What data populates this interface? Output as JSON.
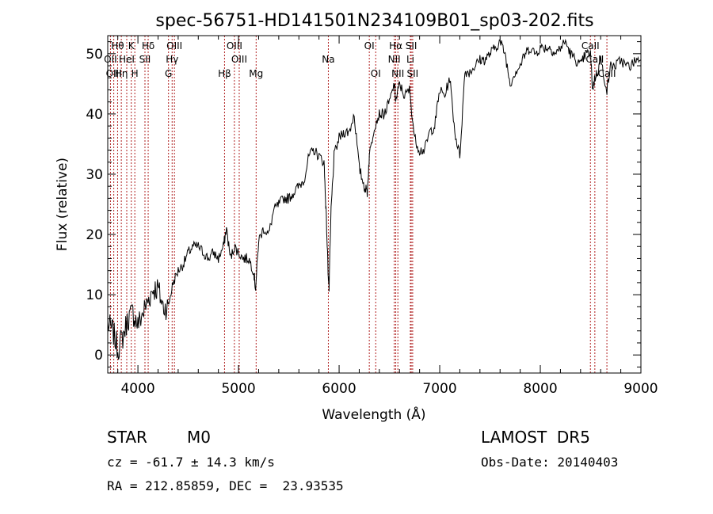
{
  "chart_data": {
    "type": "line",
    "title": "spec-56751-HD141501N234109B01_sp03-202.fits",
    "xlabel": "Wavelength (Å)",
    "ylabel": "Flux (relative)",
    "xlim": [
      3700,
      9000
    ],
    "ylim": [
      -3,
      53
    ],
    "xticks": [
      4000,
      5000,
      6000,
      7000,
      8000,
      9000
    ],
    "yticks": [
      0,
      10,
      20,
      30,
      40,
      50
    ],
    "series": [
      {
        "x": [
          3700,
          3750,
          3800,
          3850,
          3900,
          3950,
          4000,
          4050,
          4100,
          4150,
          4200,
          4250,
          4300,
          4350,
          4400,
          4450,
          4500,
          4550,
          4600,
          4650,
          4700,
          4750,
          4800,
          4850,
          4880,
          4920,
          4960,
          5000,
          5050,
          5100,
          5150,
          5170,
          5200,
          5250,
          5300,
          5350,
          5400,
          5450,
          5500,
          5550,
          5600,
          5650,
          5700,
          5750,
          5800,
          5850,
          5870,
          5890,
          5900,
          5920,
          5950,
          6000,
          6050,
          6100,
          6150,
          6200,
          6250,
          6280,
          6300,
          6350,
          6400,
          6450,
          6500,
          6550,
          6563,
          6600,
          6650,
          6700,
          6750,
          6800,
          6850,
          6900,
          6950,
          7000,
          7050,
          7100,
          7150,
          7200,
          7250,
          7300,
          7350,
          7400,
          7450,
          7500,
          7550,
          7600,
          7650,
          7700,
          7750,
          7800,
          7850,
          7900,
          7950,
          8000,
          8050,
          8100,
          8150,
          8200,
          8250,
          8300,
          8350,
          8400,
          8450,
          8498,
          8520,
          8542,
          8570,
          8600,
          8662,
          8700,
          8750,
          8800,
          8850,
          8900,
          8950,
          9000
        ],
        "values": [
          5,
          4,
          1,
          3,
          6,
          7,
          5,
          7,
          9,
          11,
          11,
          8,
          8,
          12,
          14,
          15,
          17,
          18,
          18,
          17,
          16,
          17,
          16,
          18,
          21,
          16,
          18,
          17,
          16,
          16,
          14,
          11,
          19,
          21,
          20,
          24,
          25,
          26,
          26,
          27,
          28,
          29,
          33,
          34,
          33,
          32,
          24,
          14,
          11,
          24,
          33,
          36,
          37,
          37,
          40,
          31,
          28,
          27,
          33,
          38,
          40,
          40,
          42,
          45,
          42,
          45,
          43,
          44,
          36,
          34,
          34,
          37,
          38,
          44,
          43,
          46,
          37,
          33,
          47,
          47,
          48,
          49,
          49,
          50,
          51,
          52,
          50,
          45,
          47,
          48,
          50,
          51,
          50,
          51,
          51,
          51,
          50,
          51,
          52,
          50,
          49,
          48,
          50,
          50,
          44,
          46,
          47,
          49,
          44,
          48,
          48,
          49,
          48,
          48,
          49,
          49
        ]
      }
    ],
    "lines": [
      {
        "label": "Hθ",
        "wl": 3798,
        "row": 1
      },
      {
        "label": "OII",
        "wl": 3727,
        "row": 2
      },
      {
        "label": "OIII",
        "wl": 3760,
        "row": 3
      },
      {
        "label": "Hη",
        "wl": 3835,
        "row": 3
      },
      {
        "label": "HeI",
        "wl": 3889,
        "row": 2
      },
      {
        "label": "K",
        "wl": 3934,
        "row": 1
      },
      {
        "label": "H",
        "wl": 3969,
        "row": 3
      },
      {
        "label": "SII",
        "wl": 4070,
        "row": 2
      },
      {
        "label": "Hδ",
        "wl": 4102,
        "row": 1
      },
      {
        "label": "G",
        "wl": 4304,
        "row": 3
      },
      {
        "label": "OIII",
        "wl": 4363,
        "row": 1
      },
      {
        "label": "Hγ",
        "wl": 4340,
        "row": 2
      },
      {
        "label": "Hβ",
        "wl": 4861,
        "row": 3
      },
      {
        "label": "OIII",
        "wl": 4959,
        "row": 1
      },
      {
        "label": "OIII",
        "wl": 5007,
        "row": 2
      },
      {
        "label": "Mg",
        "wl": 5175,
        "row": 3
      },
      {
        "label": "Na",
        "wl": 5893,
        "row": 2
      },
      {
        "label": "OI",
        "wl": 6300,
        "row": 1
      },
      {
        "label": "OI",
        "wl": 6364,
        "row": 3
      },
      {
        "label": "NII",
        "wl": 6548,
        "row": 2
      },
      {
        "label": "Hα",
        "wl": 6563,
        "row": 1
      },
      {
        "label": "NII",
        "wl": 6584,
        "row": 3
      },
      {
        "label": "SII",
        "wl": 6717,
        "row": 1
      },
      {
        "label": "Li",
        "wl": 6708,
        "row": 2
      },
      {
        "label": "SII",
        "wl": 6731,
        "row": 3
      },
      {
        "label": "CaII",
        "wl": 8498,
        "row": 1
      },
      {
        "label": "CaII",
        "wl": 8542,
        "row": 2
      },
      {
        "label": "CaII",
        "wl": 8662,
        "row": 3
      }
    ]
  },
  "info": {
    "class_label": "STAR",
    "subclass": "M0",
    "survey": "LAMOST  DR5",
    "cz": "cz = -61.7 ± 14.3 km/s",
    "obs_date": "Obs-Date: 20140403",
    "coords": "RA = 212.85859, DEC =  23.93535"
  }
}
